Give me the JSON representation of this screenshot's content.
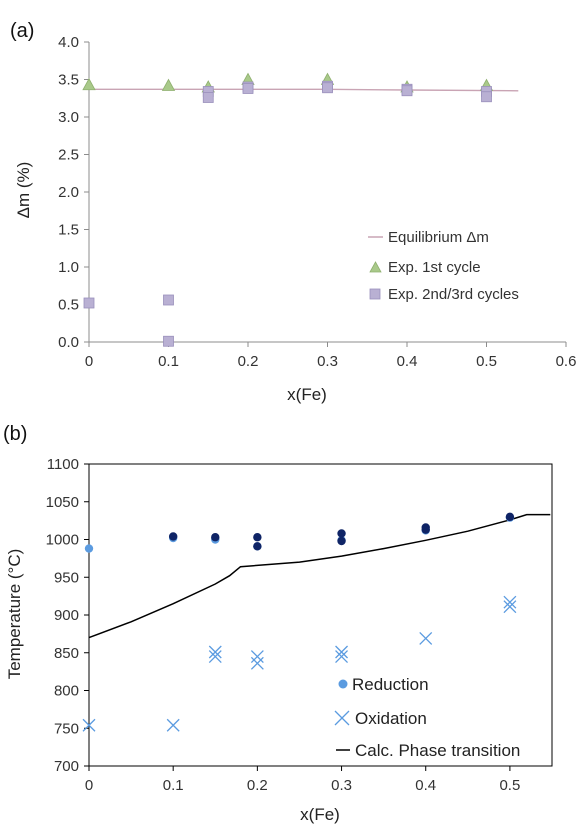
{
  "chart_data": [
    {
      "panel_label": "(a)",
      "type": "scatter",
      "xlabel": "x(Fe)",
      "ylabel": "Δm (%)",
      "xlim": [
        0,
        0.6
      ],
      "ylim": [
        0,
        4.0
      ],
      "xticks": [
        "0",
        "0.1",
        "0.2",
        "0.3",
        "0.4",
        "0.5",
        "0.6"
      ],
      "yticks": [
        "0.0",
        "0.5",
        "1.0",
        "1.5",
        "2.0",
        "2.5",
        "3.0",
        "3.5",
        "4.0"
      ],
      "grid": false,
      "legend_position": "bottom-right",
      "series": [
        {
          "name": "Equilibrium Δm",
          "kind": "line",
          "color": "#c9a4b4",
          "x": [
            0,
            0.1,
            0.2,
            0.3,
            0.4,
            0.54
          ],
          "y": [
            3.37,
            3.37,
            3.37,
            3.37,
            3.36,
            3.35
          ]
        },
        {
          "name": "Exp. 1st cycle",
          "kind": "triangle",
          "color": "#a9c98a",
          "x": [
            0,
            0.1,
            0.15,
            0.2,
            0.3,
            0.4,
            0.5
          ],
          "y": [
            3.43,
            3.42,
            3.4,
            3.5,
            3.5,
            3.4,
            3.42
          ]
        },
        {
          "name": "Exp. 2nd/3rd cycles",
          "kind": "square",
          "color": "#b9b0d3",
          "x": [
            0,
            0.1,
            0.1,
            0.15,
            0.15,
            0.2,
            0.2,
            0.3,
            0.3,
            0.4,
            0.4,
            0.5,
            0.5
          ],
          "y": [
            0.52,
            0.56,
            0.01,
            3.34,
            3.26,
            3.4,
            3.38,
            3.41,
            3.39,
            3.37,
            3.35,
            3.34,
            3.27
          ]
        }
      ]
    },
    {
      "panel_label": "(b)",
      "type": "scatter",
      "xlabel": "x(Fe)",
      "ylabel": "Temperature (°C)",
      "xlim": [
        0,
        0.55
      ],
      "ylim": [
        700,
        1100
      ],
      "xticks": [
        "0",
        "0.1",
        "0.2",
        "0.3",
        "0.4",
        "0.5"
      ],
      "yticks": [
        "700",
        "750",
        "800",
        "850",
        "900",
        "950",
        "1000",
        "1050",
        "1100"
      ],
      "grid": false,
      "legend_position": "bottom-right",
      "series": [
        {
          "name": "Reduction",
          "kind": "circle",
          "color": "#5b9be0",
          "x": [
            0,
            0.1,
            0.15,
            0.2,
            0.3,
            0.4,
            0.5
          ],
          "y": [
            988,
            1002,
            1000,
            991,
            999,
            1012,
            1029
          ]
        },
        {
          "name": "",
          "kind": "circle",
          "color": "#0f2466",
          "x": [
            0.1,
            0.15,
            0.2,
            0.2,
            0.3,
            0.3,
            0.4,
            0.4,
            0.5
          ],
          "y": [
            1004,
            1003,
            1003,
            991,
            1008,
            998,
            1016,
            1013,
            1030
          ]
        },
        {
          "name": "Oxidation",
          "kind": "cross",
          "color": "#5b9be0",
          "x": [
            0,
            0.1,
            0.15,
            0.15,
            0.2,
            0.2,
            0.3,
            0.3,
            0.4,
            0.5,
            0.5
          ],
          "y": [
            754,
            754,
            851,
            845,
            845,
            836,
            851,
            845,
            869,
            917,
            911
          ]
        },
        {
          "name": "Calc. Phase transition",
          "kind": "line",
          "color": "#000000",
          "x": [
            0,
            0.05,
            0.1,
            0.15,
            0.167,
            0.18,
            0.25,
            0.3,
            0.35,
            0.4,
            0.45,
            0.5,
            0.52,
            0.548
          ],
          "y": [
            870,
            891,
            915,
            941,
            952,
            964,
            970,
            978,
            988,
            999,
            1011,
            1026,
            1033,
            1033
          ]
        }
      ]
    }
  ]
}
